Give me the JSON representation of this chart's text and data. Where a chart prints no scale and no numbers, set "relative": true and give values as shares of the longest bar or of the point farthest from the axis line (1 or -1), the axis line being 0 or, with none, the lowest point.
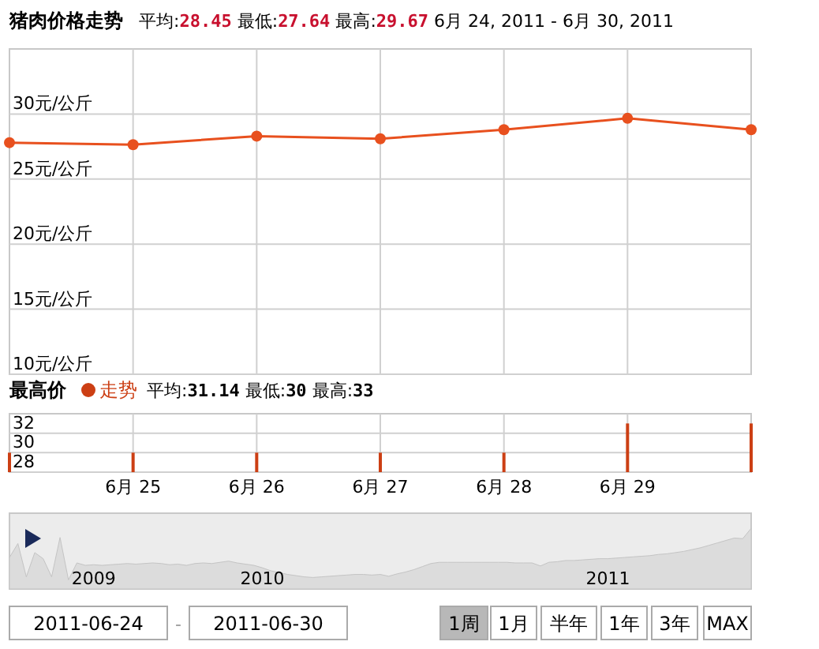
{
  "chart_data": [
    {
      "type": "line",
      "title": "猪肉价格走势",
      "subtitle": "平均:28.45 最低:27.64 最高:29.67 6月 24, 2011 - 6月 30, 2011",
      "categories": [
        null,
        null,
        null,
        null,
        null,
        null,
        null
      ],
      "series": [
        {
          "color": "#e8501e",
          "values": [
            27.8,
            27.64,
            28.3,
            28.1,
            28.8,
            29.67,
            28.8
          ]
        }
      ],
      "ylim": [
        10,
        35
      ],
      "yticks": [
        {
          "value": 10,
          "label": "10元/公斤"
        },
        {
          "value": 15,
          "label": "15元/公斤"
        },
        {
          "value": 20,
          "label": "20元/公斤"
        },
        {
          "value": 25,
          "label": "25元/公斤"
        },
        {
          "value": 30,
          "label": "30元/公斤"
        }
      ],
      "grid": true,
      "marker": "circle"
    },
    {
      "type": "bar",
      "title": "最高价",
      "subtitle": "平均:31.14 最低:30 最高:33",
      "categories": [
        null,
        "6月 25",
        "6月 26",
        "6月 27",
        "6月 28",
        "6月 29",
        null
      ],
      "series": [
        {
          "name": "走势",
          "color": "#cc3f14",
          "values": [
            30,
            30,
            30,
            30,
            30,
            33,
            33
          ]
        }
      ],
      "ylim": [
        28,
        34
      ],
      "yticks": [
        28,
        30,
        32
      ],
      "grid": true,
      "legend": "top left"
    },
    {
      "type": "area",
      "relative": true,
      "categories": [
        null,
        null,
        null,
        null,
        null,
        null,
        null,
        null,
        null,
        null,
        "2009",
        null,
        null,
        null,
        null,
        null,
        null,
        null,
        null,
        null,
        null,
        null,
        null,
        null,
        null,
        null,
        null,
        null,
        null,
        null,
        "2010",
        null,
        null,
        null,
        null,
        null,
        null,
        null,
        null,
        null,
        null,
        null,
        null,
        null,
        null,
        null,
        null,
        null,
        null,
        null,
        null,
        null,
        null,
        null,
        null,
        null,
        null,
        null,
        null,
        null,
        null,
        null,
        null,
        null,
        null,
        null,
        null,
        null,
        null,
        null,
        null,
        "2011",
        null,
        null,
        null,
        null,
        null,
        null,
        null,
        null,
        null,
        null,
        null,
        null,
        null,
        null,
        null,
        null,
        null
      ],
      "series": [
        {
          "color": "#c4c4c4",
          "values": [
            0.52,
            0.75,
            0.2,
            0.6,
            0.5,
            0.2,
            0.85,
            0.15,
            0.43,
            0.39,
            0.4,
            0.39,
            0.4,
            0.41,
            0.42,
            0.41,
            0.42,
            0.43,
            0.42,
            0.4,
            0.41,
            0.39,
            0.42,
            0.43,
            0.42,
            0.44,
            0.46,
            0.43,
            0.41,
            0.39,
            0.35,
            0.3,
            0.27,
            0.24,
            0.22,
            0.2,
            0.19,
            0.2,
            0.21,
            0.22,
            0.23,
            0.24,
            0.24,
            0.23,
            0.24,
            0.21,
            0.25,
            0.28,
            0.32,
            0.37,
            0.42,
            0.44,
            0.44,
            0.44,
            0.44,
            0.44,
            0.44,
            0.44,
            0.44,
            0.44,
            0.43,
            0.43,
            0.43,
            0.38,
            0.44,
            0.45,
            0.47,
            0.47,
            0.48,
            0.49,
            0.5,
            0.5,
            0.51,
            0.52,
            0.53,
            0.54,
            0.55,
            0.57,
            0.58,
            0.6,
            0.62,
            0.65,
            0.68,
            0.72,
            0.76,
            0.8,
            0.84,
            0.83,
            1.0
          ]
        }
      ],
      "annotations": [
        "2011-06-24",
        "-",
        "2011-06-30",
        "1周",
        "1月",
        "半年",
        "1年",
        "3年",
        "MAX"
      ]
    }
  ]
}
